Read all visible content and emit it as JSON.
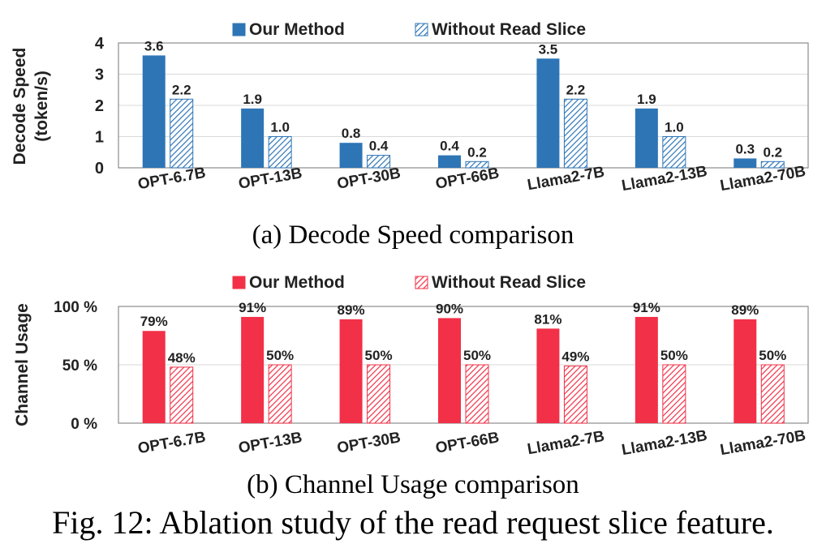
{
  "figure_caption": "Fig. 12: Ablation study of the read request slice feature.",
  "chart_data": [
    {
      "type": "bar",
      "caption": "(a) Decode Speed comparison",
      "ylabel": [
        "Decode Speed",
        "(token/s)"
      ],
      "yticks": [
        "0",
        "1",
        "2",
        "3",
        "4"
      ],
      "ylim": [
        0,
        4
      ],
      "grid": true,
      "legend_position": "top",
      "categories": [
        "OPT-6.7B",
        "OPT-13B",
        "OPT-30B",
        "OPT-66B",
        "Llama2-7B",
        "Llama2-13B",
        "Llama2-70B"
      ],
      "series": [
        {
          "name": "Our Method",
          "color": "#2e75b6",
          "pattern": "solid",
          "values": [
            3.6,
            1.9,
            0.8,
            0.4,
            3.5,
            1.9,
            0.3
          ],
          "labels": [
            "3.6",
            "1.9",
            "0.8",
            "0.4",
            "3.5",
            "1.9",
            "0.3"
          ]
        },
        {
          "name": "Without Read Slice",
          "color": "#2e75b6",
          "pattern": "hatched",
          "values": [
            2.2,
            1.0,
            0.4,
            0.2,
            2.2,
            1.0,
            0.2
          ],
          "labels": [
            "2.2",
            "1.0",
            "0.4",
            "0.2",
            "2.2",
            "1.0",
            "0.2"
          ]
        }
      ]
    },
    {
      "type": "bar",
      "caption": "(b) Channel Usage comparison",
      "ylabel": [
        "Channel Usage"
      ],
      "yticks": [
        "0 %",
        "50 %",
        "100 %"
      ],
      "ylim": [
        0,
        100
      ],
      "grid": true,
      "legend_position": "top",
      "categories": [
        "OPT-6.7B",
        "OPT-13B",
        "OPT-30B",
        "OPT-66B",
        "Llama2-7B",
        "Llama2-13B",
        "Llama2-70B"
      ],
      "series": [
        {
          "name": "Our Method",
          "color": "#f23047",
          "pattern": "solid",
          "values": [
            79,
            91,
            89,
            90,
            81,
            91,
            89
          ],
          "labels": [
            "79%",
            "91%",
            "89%",
            "90%",
            "81%",
            "91%",
            "89%"
          ]
        },
        {
          "name": "Without Read Slice",
          "color": "#f23047",
          "pattern": "hatched",
          "values": [
            48,
            50,
            50,
            50,
            49,
            50,
            50
          ],
          "labels": [
            "48%",
            "50%",
            "50%",
            "50%",
            "49%",
            "50%",
            "50%"
          ]
        }
      ]
    }
  ]
}
